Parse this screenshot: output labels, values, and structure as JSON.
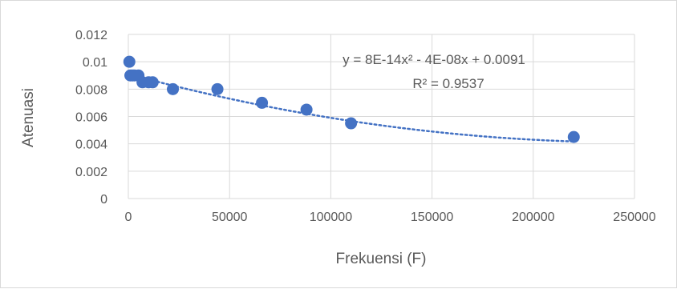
{
  "chart_data": {
    "type": "scatter",
    "title": "",
    "xlabel": "Frekuensi (F)",
    "ylabel": "Atenuasi",
    "xlim": [
      0,
      250000
    ],
    "ylim": [
      0,
      0.012
    ],
    "x_ticks": [
      "0",
      "50000",
      "100000",
      "150000",
      "200000",
      "250000"
    ],
    "y_ticks": [
      "0",
      "0.002",
      "0.004",
      "0.006",
      "0.008",
      "0.01",
      "0.012"
    ],
    "grid": "vertical and horizontal major gridlines",
    "legend": "none",
    "series": [
      {
        "x": [
          500,
          1000,
          2000,
          3000,
          5000,
          7000,
          10000,
          12000,
          22000,
          44000,
          66000,
          88000,
          110000,
          220000
        ],
        "y": [
          0.01,
          0.009,
          0.009,
          0.009,
          0.009,
          0.0085,
          0.0085,
          0.0085,
          0.008,
          0.008,
          0.007,
          0.0065,
          0.0055,
          0.0045
        ],
        "color": "#4472c4"
      }
    ],
    "trendline": {
      "type": "polynomial",
      "order": 2,
      "coefficients": [
        8e-14,
        -4e-08,
        0.0091
      ],
      "equation": "y = 8E-14x² - 4E-08x + 0.0091",
      "r_squared": "R² = 0.9537",
      "style": "dotted",
      "color": "#4472c4"
    }
  }
}
